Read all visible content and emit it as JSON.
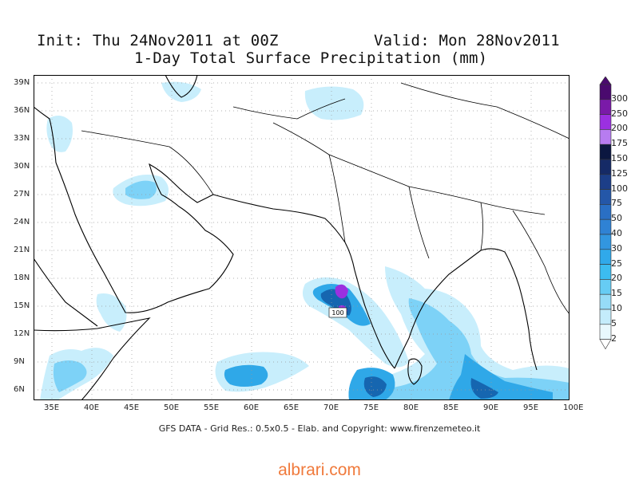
{
  "header": {
    "init": "Init: Thu 24Nov2011 at 00Z",
    "valid": "Valid: Mon 28Nov2011",
    "title": "1-Day Total Surface Precipitation (mm)"
  },
  "map": {
    "lat_labels": [
      "39N",
      "36N",
      "33N",
      "30N",
      "27N",
      "24N",
      "21N",
      "18N",
      "15N",
      "12N",
      "9N",
      "6N"
    ],
    "lon_labels": [
      "35E",
      "40E",
      "45E",
      "50E",
      "55E",
      "60E",
      "65E",
      "70E",
      "75E",
      "80E",
      "85E",
      "90E",
      "95E",
      "100E"
    ],
    "contour_label": "100",
    "precip_colors": {
      "light": "#c8eefc",
      "medium": "#7dd2f7",
      "medium_dark": "#2fa8e8",
      "dark": "#1666b0",
      "darker": "#123a7a",
      "purple": "#9b30e0"
    },
    "land_outline_color": "#000000",
    "grid": "dotted"
  },
  "colorbar": {
    "labels": [
      "300",
      "250",
      "200",
      "175",
      "150",
      "125",
      "100",
      "75",
      "50",
      "40",
      "30",
      "25",
      "20",
      "15",
      "10",
      "5",
      "2"
    ],
    "colors": [
      "#4a0a6e",
      "#7a1aa8",
      "#9b30e0",
      "#b77cf0",
      "#0b1740",
      "#152a66",
      "#1c3e88",
      "#2457a8",
      "#2a6fc4",
      "#2f82d4",
      "#3296e0",
      "#30a9ea",
      "#3cbcf0",
      "#66ccf4",
      "#96dcf7",
      "#c4ecfb",
      "#e8f8fd"
    ]
  },
  "credit": "GFS DATA - Grid Res.: 0.5x0.5 - Elab. and Copyright: www.firenzemeteo.it",
  "watermark": "albrari.com"
}
